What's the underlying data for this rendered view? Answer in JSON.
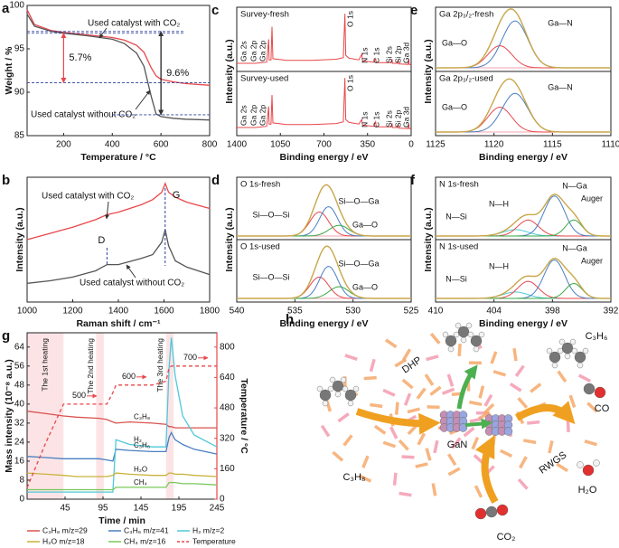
{
  "chart_data": [
    {
      "panel": "a",
      "type": "line",
      "xlabel": "Temperature / °C",
      "ylabel": "Weight / %",
      "xlim": [
        50,
        800
      ],
      "xticks": [
        200,
        400,
        600,
        800
      ],
      "ylim": [
        85,
        100
      ],
      "yticks": [
        85,
        90,
        95,
        100
      ],
      "x": [
        50,
        80,
        150,
        200,
        300,
        400,
        450,
        500,
        530,
        560,
        580,
        600,
        650,
        700,
        800
      ],
      "series": [
        {
          "name": "Used catalyst with CO₂",
          "color": "#e8474b",
          "values": [
            99.5,
            97.8,
            97.1,
            96.9,
            96.6,
            96.3,
            96.0,
            95.4,
            94.6,
            92.8,
            91.9,
            91.5,
            91.2,
            91.0,
            90.8
          ]
        },
        {
          "name": "Used catalyst without CO₂",
          "color": "#555555",
          "values": [
            99,
            97.6,
            97.0,
            96.8,
            96.5,
            96.1,
            95.6,
            94.5,
            93.0,
            89.5,
            87.5,
            87.2,
            87.0,
            86.9,
            86.8
          ]
        }
      ],
      "annotations": [
        {
          "text": "5.7%",
          "x": 200,
          "from": 96.8,
          "to": 91.1,
          "color": "#e8474b"
        },
        {
          "text": "9.6%",
          "x": 600,
          "from": 97.0,
          "to": 87.4,
          "color": "#111111"
        }
      ]
    },
    {
      "panel": "b",
      "type": "line",
      "xlabel": "Raman shift / cm⁻¹",
      "ylabel": "Intensity (a.u.)",
      "xlim": [
        1000,
        1800
      ],
      "xticks": [
        1000,
        1200,
        1400,
        1600,
        1800
      ],
      "ylim": [
        0,
        1
      ],
      "x": [
        1000,
        1100,
        1200,
        1300,
        1350,
        1400,
        1500,
        1550,
        1590,
        1605,
        1620,
        1650,
        1700,
        1800
      ],
      "series": [
        {
          "name": "Used catalyst with CO₂",
          "color": "#e8474b",
          "values": [
            0.5,
            0.55,
            0.6,
            0.66,
            0.7,
            0.72,
            0.78,
            0.82,
            0.88,
            0.95,
            0.88,
            0.84,
            0.8,
            0.75
          ]
        },
        {
          "name": "Used catalyst without CO₂",
          "color": "#555555",
          "values": [
            0.15,
            0.17,
            0.2,
            0.25,
            0.3,
            0.3,
            0.35,
            0.38,
            0.48,
            0.58,
            0.45,
            0.33,
            0.28,
            0.22
          ]
        }
      ],
      "peaks": [
        {
          "label": "D",
          "x": 1350
        },
        {
          "label": "G",
          "x": 1605
        }
      ]
    },
    {
      "panel": "c",
      "type": "spectrum",
      "xlabel": "Binding energy / eV",
      "ylabel": "Intensity (a.u.)",
      "xlim": [
        1400,
        0
      ],
      "xticks": [
        1400,
        1050,
        700,
        350,
        0
      ],
      "ylim": [
        0,
        1
      ],
      "x": [
        1400,
        1250,
        1160,
        1144,
        1140,
        1125,
        1117,
        1110,
        1000,
        800,
        600,
        545,
        532,
        525,
        500,
        420,
        397,
        390,
        300,
        285,
        280,
        160,
        153,
        150,
        110,
        102,
        100,
        25,
        20,
        15,
        0
      ],
      "subplots": [
        {
          "title": "Survey-fresh",
          "color": "#e8474b",
          "values": [
            0.08,
            0.08,
            0.1,
            0.5,
            0.14,
            0.14,
            0.72,
            0.16,
            0.13,
            0.13,
            0.15,
            0.18,
            0.95,
            0.22,
            0.17,
            0.14,
            0.24,
            0.12,
            0.1,
            0.16,
            0.09,
            0.09,
            0.15,
            0.08,
            0.08,
            0.13,
            0.07,
            0.06,
            0.16,
            0.06,
            0.05
          ],
          "peak_labels": [
            "Ga 2s",
            "Ga 2p",
            "Ga 2p",
            "O 1s",
            "N 1s",
            "C 1s",
            "Si 2s",
            "Si 2p",
            "Ga 3d"
          ]
        },
        {
          "title": "Survey-used",
          "color": "#e8474b",
          "values": [
            0.08,
            0.08,
            0.1,
            0.45,
            0.14,
            0.14,
            0.65,
            0.16,
            0.13,
            0.13,
            0.15,
            0.18,
            0.95,
            0.22,
            0.17,
            0.14,
            0.22,
            0.12,
            0.1,
            0.18,
            0.09,
            0.09,
            0.15,
            0.08,
            0.08,
            0.13,
            0.07,
            0.06,
            0.15,
            0.06,
            0.05
          ],
          "peak_labels": [
            "Ga 2s",
            "Ga 2p",
            "Ga 2p",
            "O 1s",
            "N 1s",
            "C 1s",
            "Si 2s",
            "Si 2p",
            "Ga 3d"
          ]
        }
      ]
    },
    {
      "panel": "d",
      "type": "deconvolution",
      "xlabel": "Binding energy / eV",
      "ylabel": "Intensity (a.u.)",
      "xlim": [
        540,
        525
      ],
      "xticks": [
        540,
        535,
        530,
        525
      ],
      "ylim": [
        0,
        1
      ],
      "envelope_color": "#c9a64a",
      "subplots": [
        {
          "title": "O 1s-fresh",
          "components": [
            {
              "name": "Si—O—Si",
              "color": "#e8474b",
              "center": 532.9,
              "height": 0.45,
              "fwhm": 1.9
            },
            {
              "name": "Si—O—Ga",
              "color": "#4a7fc1",
              "center": 532.1,
              "height": 0.55,
              "fwhm": 1.8
            },
            {
              "name": "Ga—O",
              "color": "#3aa845",
              "center": 531.2,
              "height": 0.2,
              "fwhm": 2.0
            }
          ]
        },
        {
          "title": "O 1s-used",
          "components": [
            {
              "name": "Si—O—Si",
              "color": "#e8474b",
              "center": 532.9,
              "height": 0.4,
              "fwhm": 1.9
            },
            {
              "name": "Si—O—Ga",
              "color": "#4a7fc1",
              "center": 532.1,
              "height": 0.6,
              "fwhm": 1.8
            },
            {
              "name": "Ga—O",
              "color": "#3aa845",
              "center": 531.2,
              "height": 0.22,
              "fwhm": 2.0
            }
          ]
        }
      ]
    },
    {
      "panel": "e",
      "type": "deconvolution",
      "xlabel": "Binding energy / eV",
      "ylabel": "Intensity (a.u.)",
      "xlim": [
        1125,
        1110
      ],
      "xticks": [
        1125,
        1120,
        1115,
        1110
      ],
      "ylim": [
        0,
        1
      ],
      "envelope_color": "#c9a64a",
      "subplots": [
        {
          "title": "Ga 2p₃/₂-fresh",
          "components": [
            {
              "name": "Ga—O",
              "color": "#e8474b",
              "center": 1119.5,
              "height": 0.4,
              "fwhm": 2.4
            },
            {
              "name": "Ga—N",
              "color": "#4a7fc1",
              "center": 1118.2,
              "height": 0.85,
              "fwhm": 2.6
            }
          ]
        },
        {
          "title": "Ga 2p₃/₂-used",
          "components": [
            {
              "name": "Ga—O",
              "color": "#e8474b",
              "center": 1119.5,
              "height": 0.45,
              "fwhm": 2.4
            },
            {
              "name": "Ga—N",
              "color": "#4a7fc1",
              "center": 1118.2,
              "height": 0.7,
              "fwhm": 2.6
            }
          ]
        }
      ]
    },
    {
      "panel": "f",
      "type": "deconvolution",
      "xlabel": "Binding energy / eV",
      "ylabel": "Intensity (a.u.)",
      "xlim": [
        410,
        392
      ],
      "xticks": [
        410,
        404,
        398,
        392
      ],
      "ylim": [
        0,
        1
      ],
      "envelope_color": "#c9a64a",
      "subplots": [
        {
          "title": "N 1s-fresh",
          "components": [
            {
              "name": "N—Si",
              "color": "#4fc9d9",
              "center": 401.8,
              "height": 0.12,
              "fwhm": 3.0
            },
            {
              "name": "N—H",
              "color": "#e8474b",
              "center": 400.5,
              "height": 0.3,
              "fwhm": 2.5
            },
            {
              "name": "N—Ga",
              "color": "#4a7fc1",
              "center": 397.8,
              "height": 0.75,
              "fwhm": 2.5
            },
            {
              "name": "Auger",
              "color": "#3aa845",
              "center": 395.8,
              "height": 0.3,
              "fwhm": 2.0
            }
          ]
        },
        {
          "title": "N 1s-used",
          "components": [
            {
              "name": "N—Si",
              "color": "#4fc9d9",
              "center": 401.8,
              "height": 0.12,
              "fwhm": 3.0
            },
            {
              "name": "N—H",
              "color": "#e8474b",
              "center": 400.5,
              "height": 0.32,
              "fwhm": 2.5
            },
            {
              "name": "N—Ga",
              "color": "#4a7fc1",
              "center": 397.8,
              "height": 0.72,
              "fwhm": 2.5
            },
            {
              "name": "Auger",
              "color": "#3aa845",
              "center": 395.8,
              "height": 0.28,
              "fwhm": 2.0
            }
          ]
        }
      ]
    },
    {
      "panel": "g",
      "type": "line",
      "xlabel": "Time / min",
      "ylabel": "Mass intensity (10⁻⁸ a.u.)",
      "y2label": "Temperature / °C",
      "xlim": [
        -5,
        245
      ],
      "xticks": [
        45,
        95,
        145,
        195,
        245
      ],
      "ylim": [
        0,
        70
      ],
      "yticks": [
        0,
        8,
        16,
        24,
        32,
        40,
        48,
        56,
        64
      ],
      "y2lim": [
        0,
        875
      ],
      "y2ticks": [
        0,
        160,
        320,
        480,
        640,
        800
      ],
      "y2color": "#e8474b",
      "bands": [
        [
          -5,
          43
        ],
        [
          86,
          96
        ],
        [
          178,
          188
        ]
      ],
      "band_labels": [
        "The 1st heating",
        "The 2nd heating",
        "The 3rd heating"
      ],
      "setpoints": [
        500,
        600,
        700
      ],
      "x": [
        -5,
        20,
        43,
        60,
        90,
        100,
        108,
        112,
        130,
        160,
        178,
        182,
        185,
        190,
        200,
        215,
        245
      ],
      "series": [
        {
          "name": "C₃H₈ m/z=29",
          "label": "C₃H₈",
          "color": "#d9534f",
          "values": [
            37,
            36,
            35,
            34.5,
            34,
            33.5,
            32.5,
            32,
            32.5,
            32,
            31.5,
            30.5,
            30.5,
            30,
            30,
            30,
            30
          ]
        },
        {
          "name": "C₃H₆ m/z=41",
          "label": "C₃H₆",
          "color": "#4a7fc1",
          "values": [
            18,
            17.5,
            17,
            17,
            17,
            16.5,
            16,
            21,
            20.5,
            20,
            20,
            26,
            28,
            25,
            23,
            21,
            19
          ]
        },
        {
          "name": "H₂ m/z=2",
          "label": "H₂",
          "color": "#4fc9d9",
          "values": [
            3,
            3,
            3,
            3,
            3,
            3,
            3,
            25,
            23,
            22,
            22,
            55,
            68,
            52,
            35,
            27,
            22
          ]
        },
        {
          "name": "H₂O m/z=18",
          "label": "H₂O",
          "color": "#c9b23a",
          "values": [
            11,
            10.5,
            10,
            9.5,
            9.5,
            9.5,
            10,
            11,
            10.5,
            10,
            10,
            11,
            11,
            10.5,
            10.5,
            10,
            9.5
          ]
        },
        {
          "name": "CH₄ m/z=16",
          "label": "CH₄",
          "color": "#7bc85a",
          "values": [
            4,
            4,
            4,
            4,
            4,
            4,
            4,
            5,
            5,
            5,
            5,
            7,
            7,
            7,
            6.5,
            6.5,
            6
          ]
        },
        {
          "name": "Temperature",
          "color": "#e8474b",
          "axis": "y2",
          "dashed": true,
          "values": [
            60,
            300,
            500,
            500,
            500,
            500,
            560,
            600,
            600,
            600,
            620,
            690,
            700,
            700,
            700,
            700,
            700
          ]
        }
      ]
    }
  ],
  "diagram": {
    "panel": "h",
    "labels": {
      "dhp": "DHP",
      "gan": "GaN",
      "rwgs": "RWGS",
      "propene": "C₃H₆",
      "propane": "C₃H₈",
      "co": "CO",
      "water": "H₂O",
      "co2": "CO₂"
    }
  }
}
